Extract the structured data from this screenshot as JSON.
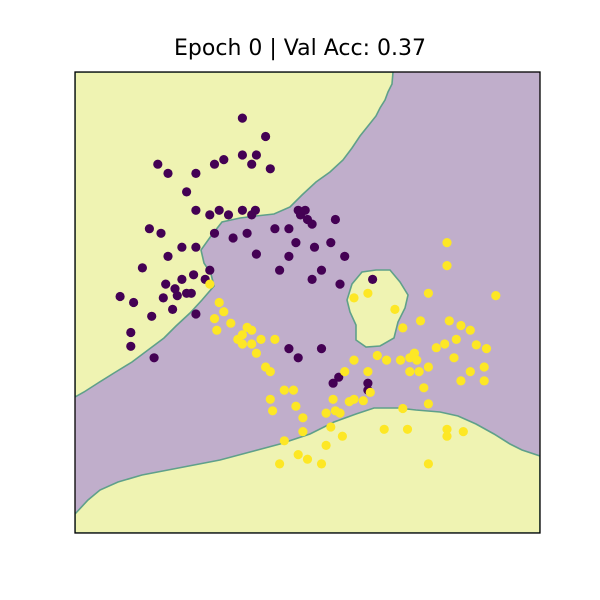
{
  "chart_data": {
    "type": "scatter",
    "title": "Epoch 0 | Val Acc: 0.37",
    "xlabel": "",
    "ylabel": "",
    "xlim": [
      0,
      100
    ],
    "ylim": [
      0,
      100
    ],
    "axis_ticks": "hidden",
    "grid": false,
    "background": "decision regions (class 0 = purple, class 1 = yellow)",
    "colors": {
      "class0_point": "#440154",
      "class1_point": "#fde725",
      "class0_region": "#c0aecb",
      "class1_region": "#eff3b2",
      "boundary": "#5fa08a"
    },
    "series": [
      {
        "class": 0,
        "points": [
          [
            36,
            90
          ],
          [
            41,
            86
          ],
          [
            36,
            82
          ],
          [
            32,
            81
          ],
          [
            30,
            80
          ],
          [
            38,
            80
          ],
          [
            17.8,
            80
          ],
          [
            20,
            78
          ],
          [
            39,
            82
          ],
          [
            42,
            79
          ],
          [
            26,
            78
          ],
          [
            24,
            74
          ],
          [
            26,
            70
          ],
          [
            29,
            69
          ],
          [
            31,
            70
          ],
          [
            33,
            69
          ],
          [
            36,
            70
          ],
          [
            38,
            69
          ],
          [
            34,
            64
          ],
          [
            37,
            65
          ],
          [
            30,
            65
          ],
          [
            26,
            62
          ],
          [
            23,
            62
          ],
          [
            20,
            60
          ],
          [
            18.5,
            65
          ],
          [
            16,
            66
          ],
          [
            38.8,
            70
          ],
          [
            43,
            66
          ],
          [
            46,
            66
          ],
          [
            48,
            70
          ],
          [
            48.5,
            69
          ],
          [
            49.5,
            70
          ],
          [
            50,
            68
          ],
          [
            51,
            67
          ],
          [
            56,
            68
          ],
          [
            55,
            63
          ],
          [
            47.5,
            63
          ],
          [
            51.5,
            62
          ],
          [
            46,
            60
          ],
          [
            39,
            60.5
          ],
          [
            44,
            57
          ],
          [
            53,
            57
          ],
          [
            29,
            57
          ],
          [
            28,
            55
          ],
          [
            25,
            52
          ],
          [
            22,
            51.5
          ],
          [
            19,
            51
          ],
          [
            14.5,
            57.5
          ],
          [
            21.5,
            53
          ],
          [
            23,
            55
          ],
          [
            25.5,
            56
          ],
          [
            19.5,
            54
          ],
          [
            12.6,
            50
          ],
          [
            21,
            48.5
          ],
          [
            26,
            47.5
          ],
          [
            9.7,
            51.3
          ],
          [
            16.5,
            47
          ],
          [
            12,
            43.5
          ],
          [
            12,
            40.5
          ],
          [
            17,
            38
          ],
          [
            24,
            52
          ],
          [
            53,
            40
          ],
          [
            46,
            40
          ],
          [
            58,
            60
          ],
          [
            64,
            55
          ],
          [
            57,
            54
          ],
          [
            51,
            55
          ],
          [
            48,
            38
          ],
          [
            63,
            31
          ],
          [
            63,
            32.5
          ],
          [
            56.7,
            33.8
          ],
          [
            55.5,
            32.5
          ]
        ]
      },
      {
        "class": 1,
        "points": [
          [
            80,
            63
          ],
          [
            80,
            58
          ],
          [
            90.5,
            51.5
          ],
          [
            76,
            52
          ],
          [
            63,
            52
          ],
          [
            60,
            51
          ],
          [
            68.8,
            48.5
          ],
          [
            70.5,
            44.5
          ],
          [
            80.5,
            46
          ],
          [
            74.3,
            46
          ],
          [
            83,
            45
          ],
          [
            82,
            42
          ],
          [
            79.5,
            41
          ],
          [
            86.3,
            40.8
          ],
          [
            77.7,
            40.2
          ],
          [
            73,
            39
          ],
          [
            85,
            44
          ],
          [
            88.5,
            40
          ],
          [
            81.5,
            38
          ],
          [
            76,
            36
          ],
          [
            29,
            54
          ],
          [
            31,
            50
          ],
          [
            32,
            48
          ],
          [
            30,
            46.5
          ],
          [
            33.5,
            45.5
          ],
          [
            30.5,
            44
          ],
          [
            37,
            44.6
          ],
          [
            35,
            42
          ],
          [
            36,
            41
          ],
          [
            38,
            41
          ],
          [
            38,
            44
          ],
          [
            36,
            43
          ],
          [
            40,
            42
          ],
          [
            43,
            42
          ],
          [
            41,
            36
          ],
          [
            42,
            35
          ],
          [
            39,
            39
          ],
          [
            47,
            31
          ],
          [
            45,
            31
          ],
          [
            42,
            29
          ],
          [
            47.5,
            27.5
          ],
          [
            49,
            25
          ],
          [
            49,
            22
          ],
          [
            42.5,
            26.5
          ],
          [
            45,
            20
          ],
          [
            44,
            15
          ],
          [
            54,
            26
          ],
          [
            56,
            26.5
          ],
          [
            55.5,
            29
          ],
          [
            60,
            29
          ],
          [
            58,
            35
          ],
          [
            60,
            37.5
          ],
          [
            63.5,
            30.5
          ],
          [
            63,
            35
          ],
          [
            65,
            38.5
          ],
          [
            67,
            37.5
          ],
          [
            70,
            37.5
          ],
          [
            72,
            38
          ],
          [
            73,
            39
          ],
          [
            73.5,
            37.5
          ],
          [
            72,
            35
          ],
          [
            74,
            35
          ],
          [
            75,
            31.5
          ],
          [
            76,
            28
          ],
          [
            70.5,
            27
          ],
          [
            71.5,
            22.5
          ],
          [
            66.5,
            22.5
          ],
          [
            80,
            22.5
          ],
          [
            83.5,
            22
          ],
          [
            76,
            15
          ],
          [
            80,
            21
          ],
          [
            59,
            28.5
          ],
          [
            62,
            28.7
          ],
          [
            55,
            23
          ],
          [
            57,
            26
          ],
          [
            57.5,
            21
          ],
          [
            54,
            19
          ],
          [
            48,
            17
          ],
          [
            53,
            15
          ],
          [
            50,
            16
          ],
          [
            88,
            36
          ],
          [
            88,
            33
          ],
          [
            85,
            35
          ],
          [
            83,
            33
          ]
        ]
      }
    ]
  }
}
